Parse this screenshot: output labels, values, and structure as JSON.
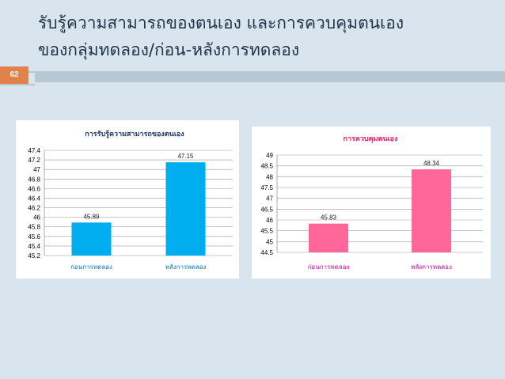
{
  "slide": {
    "title_line1": "รับรู้ความสามารถของตนเอง และการควบคุมตนเอง",
    "title_line2": "ของกลุ่มทดลอง/ก่อน-หลังการทดลอง",
    "page_number": "62"
  },
  "colors": {
    "background": "#d8e4ee",
    "title": "#22344a",
    "badge": "#e1824a",
    "divider": "#b8c7d4",
    "chart1_bar": "#00aeef",
    "chart1_title": "#1f3864",
    "chart1_xlabel": "#0070c0",
    "chart2_bar": "#ff6699",
    "chart2_title": "#e0246c",
    "chart2_xlabel": "#cc0099"
  },
  "chart_data": [
    {
      "type": "bar",
      "title": "การรับรู้ความสามารถของตนเอง",
      "categories": [
        "ก่อนการทดลอง",
        "หลังการทดลอง"
      ],
      "values": [
        45.89,
        47.15
      ],
      "data_labels": [
        "45.89",
        "47.15"
      ],
      "ylim": [
        45.2,
        47.4
      ],
      "yticks": [
        "45.2",
        "45.4",
        "45.6",
        "45.8",
        "46",
        "46.2",
        "46.4",
        "46.6",
        "46.8",
        "47",
        "47.2",
        "47.4"
      ],
      "grid": true,
      "legend": "none"
    },
    {
      "type": "bar",
      "title": "การควบคุมตนเอง",
      "categories": [
        "ก่อนการทดลอง",
        "หลังการทดลอง"
      ],
      "values": [
        45.83,
        48.34
      ],
      "data_labels": [
        "45.83",
        "48.34"
      ],
      "ylim": [
        44.5,
        49
      ],
      "yticks": [
        "44.5",
        "45",
        "45.5",
        "46",
        "46.5",
        "47",
        "47.5",
        "48",
        "48.5",
        "49"
      ],
      "grid": true,
      "legend": "none"
    }
  ]
}
